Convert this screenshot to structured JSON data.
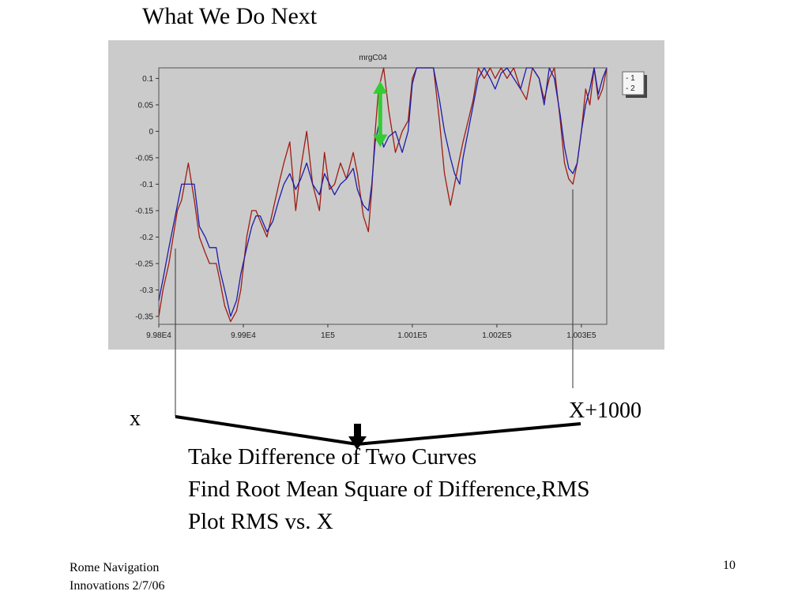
{
  "slide": {
    "title": "What We Do Next",
    "label_x": "x",
    "label_x1000": "X+1000",
    "steps": [
      "Take Difference of Two  Curves",
      "Find Root Mean Square of Difference,RMS",
      "Plot  RMS vs. X"
    ],
    "footer": {
      "line1": "Rome Navigation",
      "line2": "Innovations 2/7/06",
      "page_number": "10"
    }
  },
  "colors": {
    "panel_background": "#cbcbcb",
    "plot_background": "#cbcbcb",
    "series_1": "#1c1cab",
    "series_2": "#a01c12",
    "arrow_green": "#33cc33",
    "connector": "#000000"
  },
  "chart_data": {
    "type": "line",
    "title": "mrgC04",
    "xlabel": "",
    "ylabel": "",
    "xlim": [
      99800,
      100330
    ],
    "ylim": [
      -0.365,
      0.12
    ],
    "x_ticks": [
      99800,
      99900,
      100000,
      100100,
      100200,
      100300
    ],
    "x_tick_labels": [
      "9.98E4",
      "9.99E4",
      "1E5",
      "1.001E5",
      "1.002E5",
      "1.003E5"
    ],
    "y_ticks": [
      0.1,
      0.05,
      0,
      -0.05,
      -0.1,
      -0.15,
      -0.2,
      -0.25,
      -0.3,
      -0.35
    ],
    "y_tick_labels": [
      "0.1",
      "0.05",
      "0",
      "-0.05",
      "-0.1",
      "-0.15",
      "-0.2",
      "-0.25",
      "-0.3",
      "-0.35"
    ],
    "grid": false,
    "legend_position": "top-right",
    "series": [
      {
        "name": "1",
        "color": "#1c1cab",
        "x": [
          99800,
          99805,
          99812,
          99822,
          99827,
          99835,
          99842,
          99848,
          99855,
          99860,
          99868,
          99872,
          99878,
          99885,
          99892,
          99897,
          99904,
          99910,
          99915,
          99920,
          99928,
          99935,
          99942,
          99948,
          99955,
          99962,
          99968,
          99975,
          99982,
          99990,
          99996,
          100002,
          100008,
          100015,
          100022,
          100030,
          100035,
          100042,
          100048,
          100052,
          100056,
          100060,
          100066,
          100072,
          100080,
          100088,
          100095,
          100100,
          100105,
          100110,
          100118,
          100125,
          100132,
          100138,
          100145,
          100150,
          100156,
          100160,
          100166,
          100172,
          100178,
          100185,
          100192,
          100198,
          100205,
          100212,
          100220,
          100228,
          100235,
          100242,
          100250,
          100256,
          100262,
          100268,
          100275,
          100280,
          100285,
          100290,
          100295,
          100300,
          100305,
          100310,
          100315,
          100320,
          100325,
          100330
        ],
        "y": [
          -0.32,
          -0.28,
          -0.22,
          -0.14,
          -0.1,
          -0.1,
          -0.1,
          -0.18,
          -0.2,
          -0.22,
          -0.22,
          -0.26,
          -0.3,
          -0.35,
          -0.32,
          -0.27,
          -0.22,
          -0.18,
          -0.16,
          -0.16,
          -0.19,
          -0.17,
          -0.13,
          -0.1,
          -0.08,
          -0.11,
          -0.09,
          -0.06,
          -0.1,
          -0.12,
          -0.08,
          -0.1,
          -0.12,
          -0.1,
          -0.09,
          -0.07,
          -0.11,
          -0.14,
          -0.15,
          -0.1,
          -0.02,
          0.01,
          -0.03,
          -0.01,
          0.0,
          -0.04,
          0.0,
          0.09,
          0.12,
          0.12,
          0.12,
          0.12,
          0.06,
          0.0,
          -0.05,
          -0.08,
          -0.1,
          -0.05,
          0.0,
          0.05,
          0.1,
          0.12,
          0.1,
          0.08,
          0.11,
          0.12,
          0.1,
          0.08,
          0.12,
          0.12,
          0.1,
          0.05,
          0.12,
          0.1,
          0.03,
          -0.03,
          -0.07,
          -0.08,
          -0.06,
          0.0,
          0.05,
          0.08,
          0.12,
          0.07,
          0.1,
          0.12
        ]
      },
      {
        "name": "2",
        "color": "#a01c12",
        "x": [
          99800,
          99805,
          99812,
          99822,
          99827,
          99835,
          99842,
          99848,
          99855,
          99860,
          99868,
          99872,
          99878,
          99885,
          99892,
          99897,
          99904,
          99910,
          99915,
          99920,
          99928,
          99935,
          99942,
          99948,
          99955,
          99962,
          99968,
          99975,
          99982,
          99990,
          99996,
          100002,
          100008,
          100015,
          100022,
          100030,
          100035,
          100042,
          100048,
          100052,
          100056,
          100060,
          100066,
          100072,
          100080,
          100088,
          100095,
          100100,
          100105,
          100110,
          100118,
          100125,
          100132,
          100138,
          100145,
          100150,
          100156,
          100160,
          100166,
          100172,
          100178,
          100185,
          100192,
          100198,
          100205,
          100212,
          100220,
          100228,
          100235,
          100242,
          100250,
          100256,
          100262,
          100268,
          100275,
          100280,
          100285,
          100290,
          100295,
          100300,
          100305,
          100310,
          100315,
          100320,
          100325,
          100330
        ],
        "y": [
          -0.35,
          -0.3,
          -0.25,
          -0.15,
          -0.13,
          -0.06,
          -0.13,
          -0.2,
          -0.23,
          -0.25,
          -0.25,
          -0.28,
          -0.33,
          -0.36,
          -0.34,
          -0.3,
          -0.2,
          -0.15,
          -0.15,
          -0.17,
          -0.2,
          -0.15,
          -0.1,
          -0.06,
          -0.02,
          -0.15,
          -0.07,
          0.0,
          -0.1,
          -0.15,
          -0.04,
          -0.11,
          -0.1,
          -0.06,
          -0.09,
          -0.04,
          -0.08,
          -0.16,
          -0.19,
          -0.11,
          0.0,
          0.08,
          0.12,
          0.04,
          -0.04,
          0.0,
          0.02,
          0.1,
          0.12,
          0.12,
          0.12,
          0.12,
          0.02,
          -0.08,
          -0.14,
          -0.1,
          -0.05,
          -0.02,
          0.02,
          0.06,
          0.12,
          0.1,
          0.12,
          0.1,
          0.12,
          0.1,
          0.12,
          0.08,
          0.06,
          0.12,
          0.1,
          0.06,
          0.1,
          0.12,
          0.02,
          -0.06,
          -0.09,
          -0.1,
          -0.06,
          0.0,
          0.08,
          0.05,
          0.12,
          0.06,
          0.08,
          0.12
        ]
      }
    ],
    "annotations": [
      {
        "type": "double-arrow",
        "color": "#33cc33",
        "x": 100062,
        "y_top": 0.095,
        "y_bottom": -0.03
      }
    ],
    "markers": {
      "x_value": 99817,
      "x_plus_1000_value": 100282
    }
  }
}
